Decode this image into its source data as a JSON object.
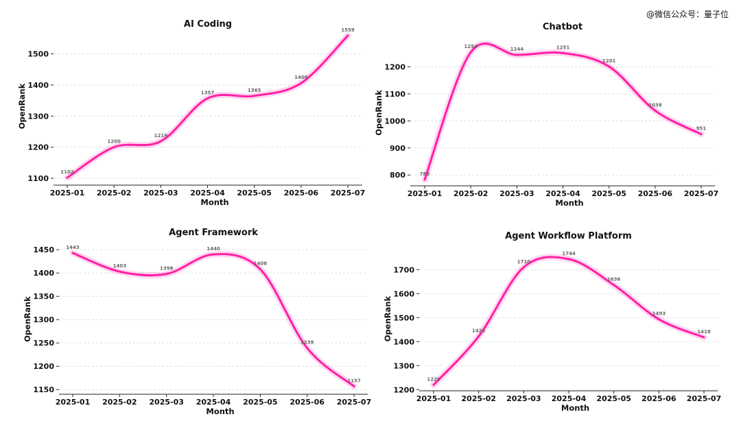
{
  "watermark": "@微信公众号：量子位",
  "chart_data": [
    {
      "type": "line",
      "title": "AI Coding",
      "xlabel": "Month",
      "ylabel": "OpenRank",
      "categories": [
        "2025-01",
        "2025-02",
        "2025-03",
        "2025-04",
        "2025-05",
        "2025-06",
        "2025-07"
      ],
      "series": [
        {
          "values": [
            1102,
            1200,
            1219,
            1357,
            1365,
            1406,
            1559
          ]
        }
      ],
      "ylim": [
        1078,
        1585
      ],
      "yticks": [
        1100,
        1200,
        1300,
        1400,
        1500
      ],
      "color": "#ff1fa6",
      "grid": true
    },
    {
      "type": "line",
      "title": "Chatbot",
      "xlabel": "Month",
      "ylabel": "OpenRank",
      "categories": [
        "2025-01",
        "2025-02",
        "2025-03",
        "2025-04",
        "2025-05",
        "2025-06",
        "2025-07"
      ],
      "series": [
        {
          "values": [
            783,
            1254,
            1244,
            1251,
            1201,
            1038,
            951
          ]
        }
      ],
      "ylim": [
        760,
        1300
      ],
      "yticks": [
        800,
        900,
        1000,
        1100,
        1200
      ],
      "color": "#ff1fa6",
      "grid": true
    },
    {
      "type": "line",
      "title": "Agent Framework",
      "xlabel": "Month",
      "ylabel": "OpenRank",
      "categories": [
        "2025-01",
        "2025-02",
        "2025-03",
        "2025-04",
        "2025-05",
        "2025-06",
        "2025-07"
      ],
      "series": [
        {
          "values": [
            1443,
            1403,
            1398,
            1440,
            1408,
            1239,
            1157
          ]
        }
      ],
      "ylim": [
        1140,
        1462
      ],
      "yticks": [
        1150,
        1200,
        1250,
        1300,
        1350,
        1400,
        1450
      ],
      "color": "#ff1fa6",
      "grid": true
    },
    {
      "type": "line",
      "title": "Agent Workflow Platform",
      "xlabel": "Month",
      "ylabel": "OpenRank",
      "categories": [
        "2025-01",
        "2025-02",
        "2025-03",
        "2025-04",
        "2025-05",
        "2025-06",
        "2025-07"
      ],
      "series": [
        {
          "values": [
            1220,
            1422,
            1710,
            1744,
            1636,
            1493,
            1418
          ]
        }
      ],
      "ylim": [
        1195,
        1795
      ],
      "yticks": [
        1200,
        1300,
        1400,
        1500,
        1600,
        1700
      ],
      "color": "#ff1fa6",
      "grid": true
    }
  ]
}
